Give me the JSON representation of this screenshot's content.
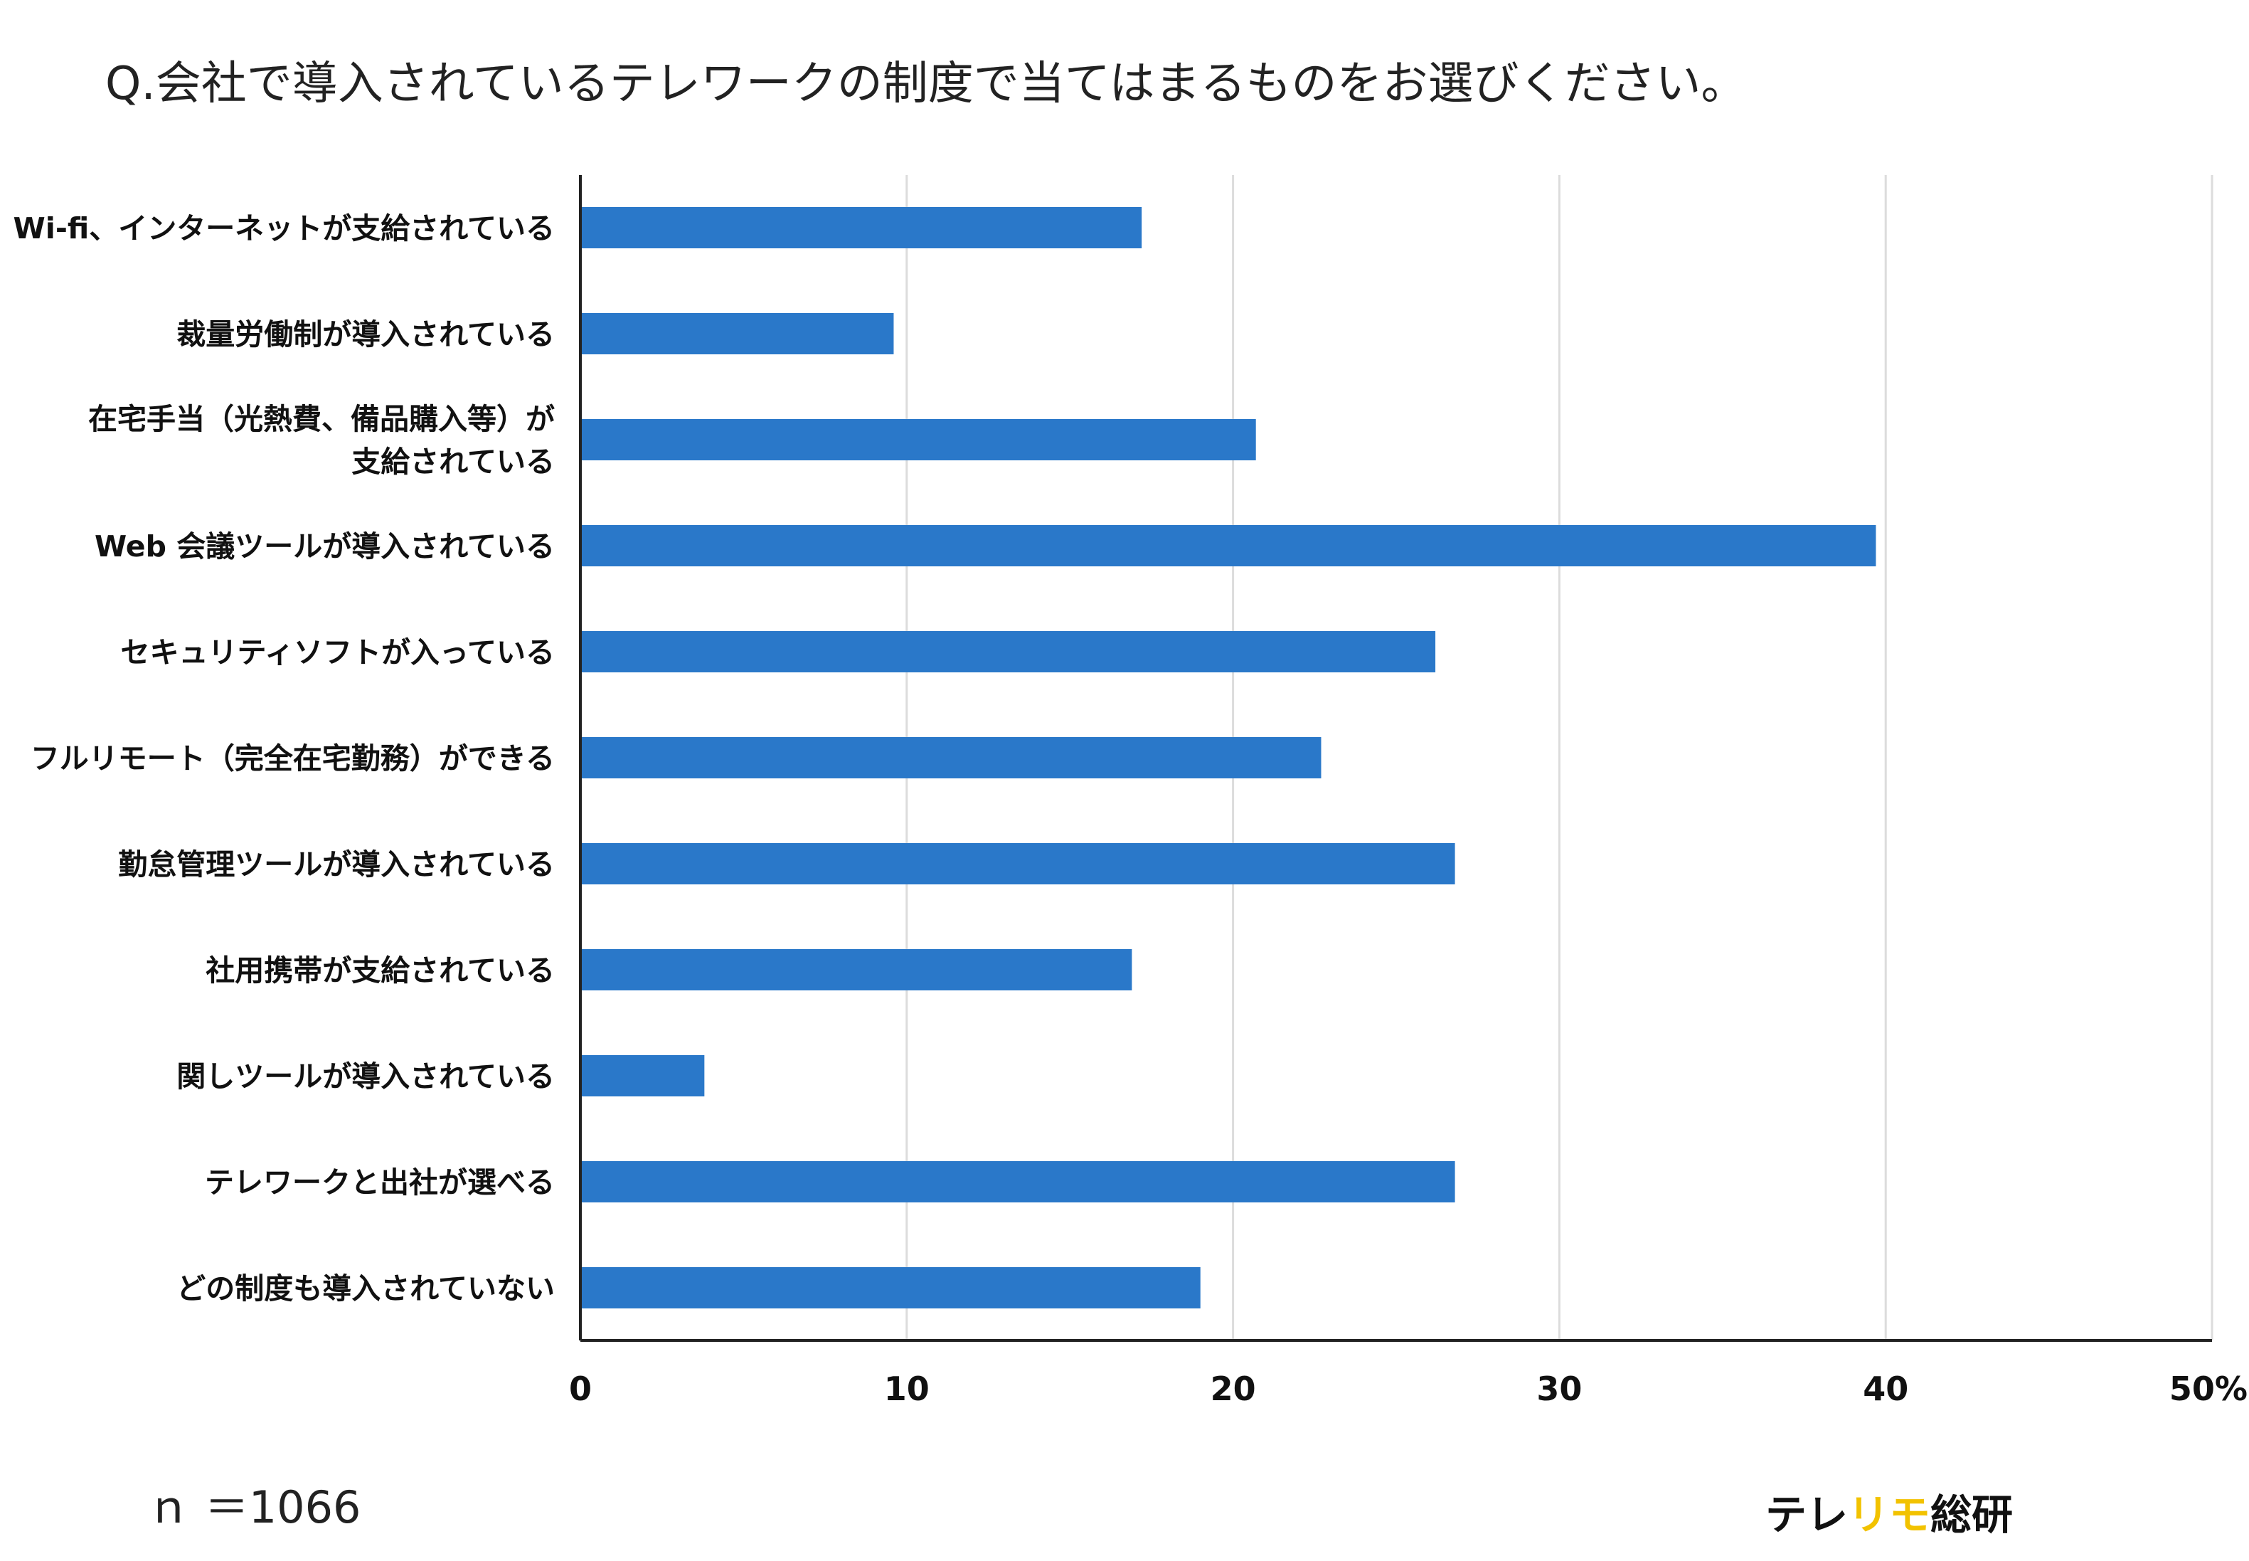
{
  "title": "Q.会社で導入されているテレワークの制度で当てはまるものをお選びください。",
  "note": "ｎ ＝1066",
  "brand": {
    "part1": "テレ",
    "part2": "リモ",
    "part3": "総研",
    "accent_color": "#f2c200"
  },
  "chart_data": {
    "type": "bar",
    "orientation": "horizontal",
    "bar_color": "#2a78c9",
    "grid": true,
    "xlim": [
      0,
      50
    ],
    "xticks": [
      "0",
      "10",
      "20",
      "30",
      "40",
      "50%"
    ],
    "categories": [
      [
        "Wi-fi、インターネットが支給されている"
      ],
      [
        "裁量労働制が導入されている"
      ],
      [
        "在宅手当（光熱費、備品購入等）が",
        "支給されている"
      ],
      [
        "Web 会議ツールが導入されている"
      ],
      [
        "セキュリティソフトが入っている"
      ],
      [
        "フルリモート（完全在宅勤務）ができる"
      ],
      [
        "勤怠管理ツールが導入されている"
      ],
      [
        "社用携帯が支給されている"
      ],
      [
        "関しツールが導入されている"
      ],
      [
        "テレワークと出社が選べる"
      ],
      [
        "どの制度も導入されていない"
      ]
    ],
    "values": [
      17.2,
      9.6,
      20.7,
      39.7,
      26.2,
      22.7,
      26.8,
      16.9,
      3.8,
      26.8,
      19.0
    ]
  }
}
